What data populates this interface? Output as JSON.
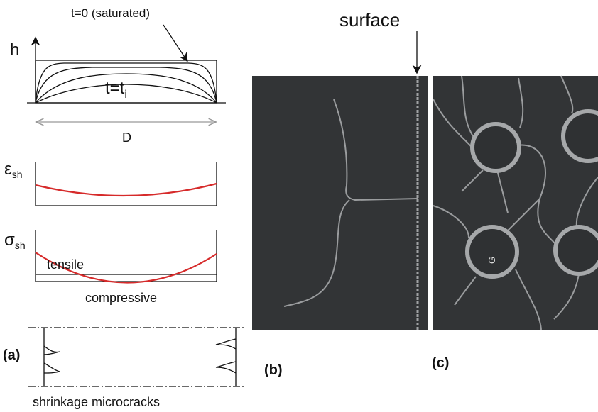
{
  "panel_a": {
    "h_label": "h",
    "saturated_label": "t=0 (saturated)",
    "ti_label": "t=t",
    "ti_subscript": "i",
    "d_label": "D",
    "strain_symbol": "ε",
    "strain_subscript": "sh",
    "stress_symbol": "σ",
    "stress_subscript": "sh",
    "tensile_label": "tensile",
    "compressive_label": "compressive",
    "panel_label": "(a)",
    "caption": "shrinkage microcracks"
  },
  "panel_b": {
    "surface_label": "surface",
    "panel_label": "(b)"
  },
  "panel_c": {
    "grain_label": "G",
    "panel_label": "(c)"
  }
}
